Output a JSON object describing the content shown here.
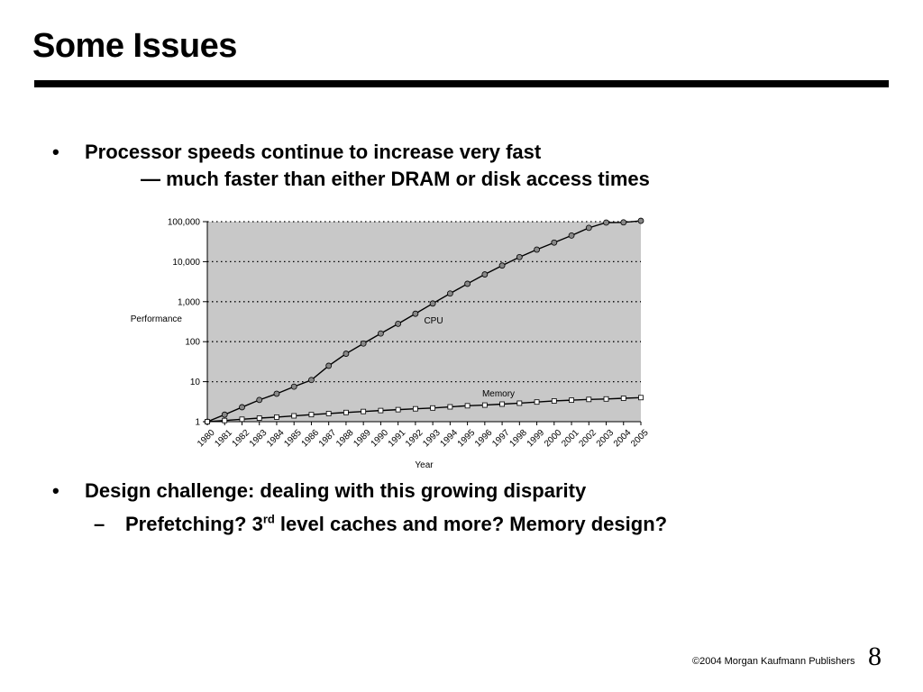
{
  "slide": {
    "title": "Some Issues",
    "bullets": [
      {
        "mark": "•",
        "line1": "Processor speeds continue to increase very fast",
        "line2": "— much faster than either DRAM or disk access times"
      },
      {
        "mark": "•",
        "line1": "Design challenge:  dealing with this growing disparity"
      }
    ],
    "sub_bullet": {
      "mark": "–",
      "text_before": "Prefetching?  3",
      "superscript": "rd",
      "text_after": " level caches and more?  Memory design?"
    },
    "footer": {
      "copyright_symbol": "©",
      "copyright": "2004 Morgan Kaufmann Publishers",
      "page_number": "8"
    }
  },
  "chart_data": {
    "type": "line",
    "xlabel": "Year",
    "ylabel": "Performance",
    "y_scale": "log",
    "ylim": [
      1,
      100000
    ],
    "y_ticks": [
      "1",
      "10",
      "100",
      "1,000",
      "10,000",
      "100,000"
    ],
    "y_tick_values": [
      1,
      10,
      100,
      1000,
      10000,
      100000
    ],
    "categories": [
      "1980",
      "1981",
      "1982",
      "1983",
      "1984",
      "1985",
      "1986",
      "1987",
      "1988",
      "1989",
      "1990",
      "1991",
      "1992",
      "1993",
      "1994",
      "1995",
      "1996",
      "1997",
      "1998",
      "1999",
      "2000",
      "2001",
      "2002",
      "2003",
      "2004",
      "2005"
    ],
    "grid": true,
    "background": "#c8c8c8",
    "series": [
      {
        "name": "CPU",
        "marker": "circle",
        "values": [
          1,
          1.5,
          2.3,
          3.5,
          5,
          7.5,
          11,
          25,
          50,
          90,
          160,
          280,
          500,
          900,
          1600,
          2800,
          4800,
          8000,
          13000,
          20000,
          30000,
          45000,
          70000,
          95000,
          96000,
          105000
        ]
      },
      {
        "name": "Memory",
        "marker": "square",
        "values": [
          1,
          1.07,
          1.15,
          1.23,
          1.3,
          1.4,
          1.5,
          1.6,
          1.7,
          1.8,
          1.9,
          2.0,
          2.1,
          2.2,
          2.35,
          2.5,
          2.6,
          2.75,
          2.9,
          3.1,
          3.3,
          3.45,
          3.6,
          3.7,
          3.85,
          4.0
        ]
      }
    ]
  }
}
